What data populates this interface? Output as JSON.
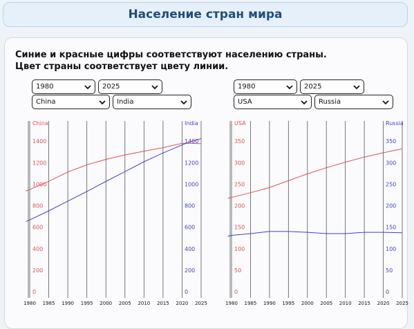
{
  "header": {
    "title": "Население стран мира"
  },
  "instructions": {
    "line1": "Синие и красные цифры соответствуют населению страны.",
    "line2": "Цвет страны соответствует цвету линии."
  },
  "colors": {
    "red_series": "#e05050",
    "blue_series": "#3f3fd0",
    "header_text": "#1f4e79"
  },
  "left_panel": {
    "start_year": "1980",
    "end_year": "2025",
    "country_red": "China",
    "country_blue": "India"
  },
  "right_panel": {
    "start_year": "1980",
    "end_year": "2025",
    "country_red": "USA",
    "country_blue": "Russia"
  },
  "chart_data": [
    {
      "type": "line",
      "x": [
        1980,
        1985,
        1990,
        1995,
        2000,
        2005,
        2010,
        2015,
        2020,
        2025
      ],
      "x_ticks": [
        "1980",
        "1985",
        "1990",
        "1995",
        "2000",
        "2005",
        "2010",
        "2015",
        "2020",
        "2025"
      ],
      "left_axis": {
        "label": "China",
        "ticks": [
          "0",
          "200",
          "400",
          "600",
          "800",
          "1000",
          "1200",
          "1400"
        ],
        "ylim": [
          0,
          1600
        ]
      },
      "right_axis": {
        "label": "India",
        "ticks": [
          "0",
          "200",
          "400",
          "600",
          "800",
          "1000",
          "1200",
          "1400"
        ],
        "ylim": [
          0,
          1600
        ]
      },
      "series": [
        {
          "name": "China",
          "color": "red",
          "x": [
            1979,
            1980,
            1985,
            1990,
            1995,
            2000,
            2005,
            2010,
            2015,
            2020,
            2022,
            2025
          ],
          "values": [
            968,
            981,
            1058,
            1145,
            1211,
            1262,
            1304,
            1338,
            1371,
            1411,
            1412,
            1408
          ]
        },
        {
          "name": "India",
          "color": "blue",
          "x": [
            1979,
            1980,
            1985,
            1990,
            1995,
            2000,
            2005,
            2010,
            2015,
            2020,
            2022,
            2023,
            2025
          ],
          "values": [
            684,
            699,
            784,
            873,
            964,
            1057,
            1148,
            1240,
            1322,
            1396,
            1425,
            1435,
            1455
          ]
        }
      ],
      "grid": "vertical"
    },
    {
      "type": "line",
      "x": [
        1980,
        1985,
        1990,
        1995,
        2000,
        2005,
        2010,
        2015,
        2020,
        2025
      ],
      "x_ticks": [
        "1980",
        "1985",
        "1990",
        "1995",
        "2000",
        "2005",
        "2010",
        "2015",
        "2020",
        "2025"
      ],
      "left_axis": {
        "label": "USA",
        "ticks": [
          "0",
          "50",
          "100",
          "150",
          "200",
          "250",
          "300",
          "350"
        ],
        "ylim": [
          0,
          400
        ]
      },
      "right_axis": {
        "label": "Russia",
        "ticks": [
          "0",
          "50",
          "100",
          "150",
          "200",
          "250",
          "300",
          "350"
        ],
        "ylim": [
          0,
          400
        ]
      },
      "series": [
        {
          "name": "USA",
          "color": "red",
          "x": [
            1979,
            1980,
            1985,
            1990,
            1995,
            2000,
            2005,
            2010,
            2015,
            2020,
            2025
          ],
          "values": [
            225,
            227,
            238,
            250,
            266,
            282,
            296,
            309,
            321,
            331,
            340
          ]
        },
        {
          "name": "Russia",
          "color": "blue",
          "x": [
            1979,
            1980,
            1985,
            1990,
            1995,
            2000,
            2005,
            2010,
            2015,
            2020,
            2025
          ],
          "values": [
            137,
            139,
            143,
            148,
            148,
            146,
            143,
            143,
            146,
            146,
            145
          ]
        }
      ],
      "grid": "vertical"
    }
  ]
}
